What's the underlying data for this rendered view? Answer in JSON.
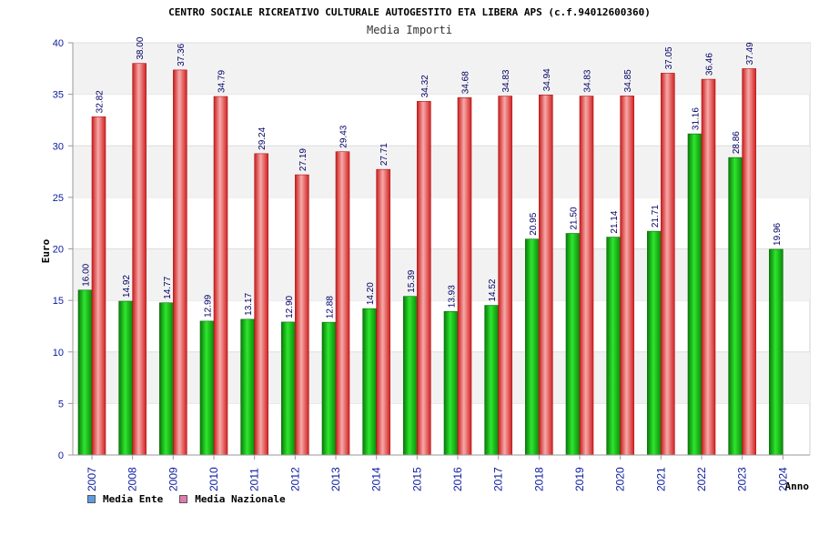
{
  "chart_data": {
    "type": "bar",
    "title": "CENTRO SOCIALE RICREATIVO CULTURALE AUTOGESTITO ETA LIBERA APS (c.f.94012600360)",
    "subtitle": "Media Importi",
    "xlabel": "Anno",
    "ylabel": "Euro",
    "ylim": [
      0,
      40
    ],
    "yticks": [
      "0",
      "5",
      "10",
      "15",
      "20",
      "25",
      "30",
      "35",
      "40"
    ],
    "categories": [
      "2007",
      "2008",
      "2009",
      "2010",
      "2011",
      "2012",
      "2013",
      "2014",
      "2015",
      "2016",
      "2017",
      "2018",
      "2019",
      "2020",
      "2021",
      "2022",
      "2023",
      "2024"
    ],
    "series": [
      {
        "name": "Media Ente",
        "color": "#12b412",
        "values": [
          16.0,
          14.92,
          14.77,
          12.99,
          13.17,
          12.9,
          12.88,
          14.2,
          15.39,
          13.93,
          14.52,
          20.95,
          21.5,
          21.14,
          21.71,
          31.16,
          28.86,
          19.96
        ],
        "labels": [
          "16.00",
          "14.92",
          "14.77",
          "12.99",
          "13.17",
          "12.90",
          "12.88",
          "14.20",
          "15.39",
          "13.93",
          "14.52",
          "20.95",
          "21.50",
          "21.14",
          "21.71",
          "31.16",
          "28.86",
          "19.96"
        ]
      },
      {
        "name": "Media Nazionale",
        "color": "#e62828",
        "values": [
          32.82,
          38.0,
          37.36,
          34.79,
          29.24,
          27.19,
          29.43,
          27.71,
          34.32,
          34.68,
          34.83,
          34.94,
          34.83,
          34.85,
          37.05,
          36.46,
          37.49,
          null
        ],
        "labels": [
          "32.82",
          "38.00",
          "37.36",
          "34.79",
          "29.24",
          "27.19",
          "29.43",
          "27.71",
          "34.32",
          "34.68",
          "34.83",
          "34.94",
          "34.83",
          "34.85",
          "37.05",
          "36.46",
          "37.49",
          null
        ]
      }
    ],
    "legend": [
      {
        "label": "Media Ente",
        "color": "#5b9be6"
      },
      {
        "label": "Media Nazionale",
        "color": "#e07ab0"
      }
    ]
  }
}
